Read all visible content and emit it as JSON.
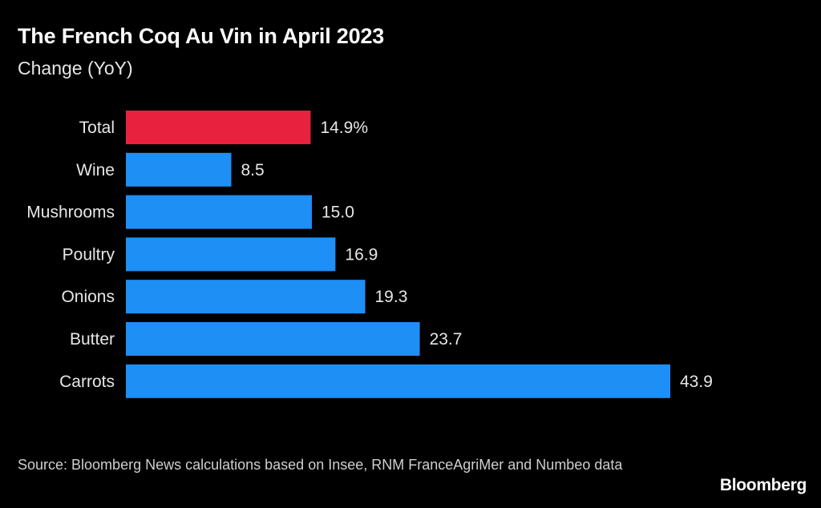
{
  "header": {
    "title": "The French Coq Au Vin in April 2023",
    "subtitle": "Change (YoY)"
  },
  "footer": {
    "source": "Source: Bloomberg News calculations based on Insee, RNM FranceAgriMer and Numbeo data",
    "brand": "Bloomberg"
  },
  "colors": {
    "background": "#000000",
    "highlight": "#e8213e",
    "bar": "#1e8ff5",
    "text": "#ffffff"
  },
  "chart_data": {
    "type": "bar",
    "orientation": "horizontal",
    "title": "The French Coq Au Vin in April 2023",
    "subtitle": "Change (YoY)",
    "categories": [
      "Total",
      "Wine",
      "Mushrooms",
      "Poultry",
      "Onions",
      "Butter",
      "Carrots"
    ],
    "values": [
      14.9,
      8.5,
      15.0,
      16.9,
      19.3,
      23.7,
      43.9
    ],
    "value_labels": [
      "14.9%",
      "8.5",
      "15.0",
      "16.9",
      "19.3",
      "23.7",
      "43.9"
    ],
    "highlight_index": 0,
    "xlim": [
      0,
      43.9
    ],
    "xlabel": "",
    "ylabel": "",
    "grid": false,
    "legend": "none"
  }
}
